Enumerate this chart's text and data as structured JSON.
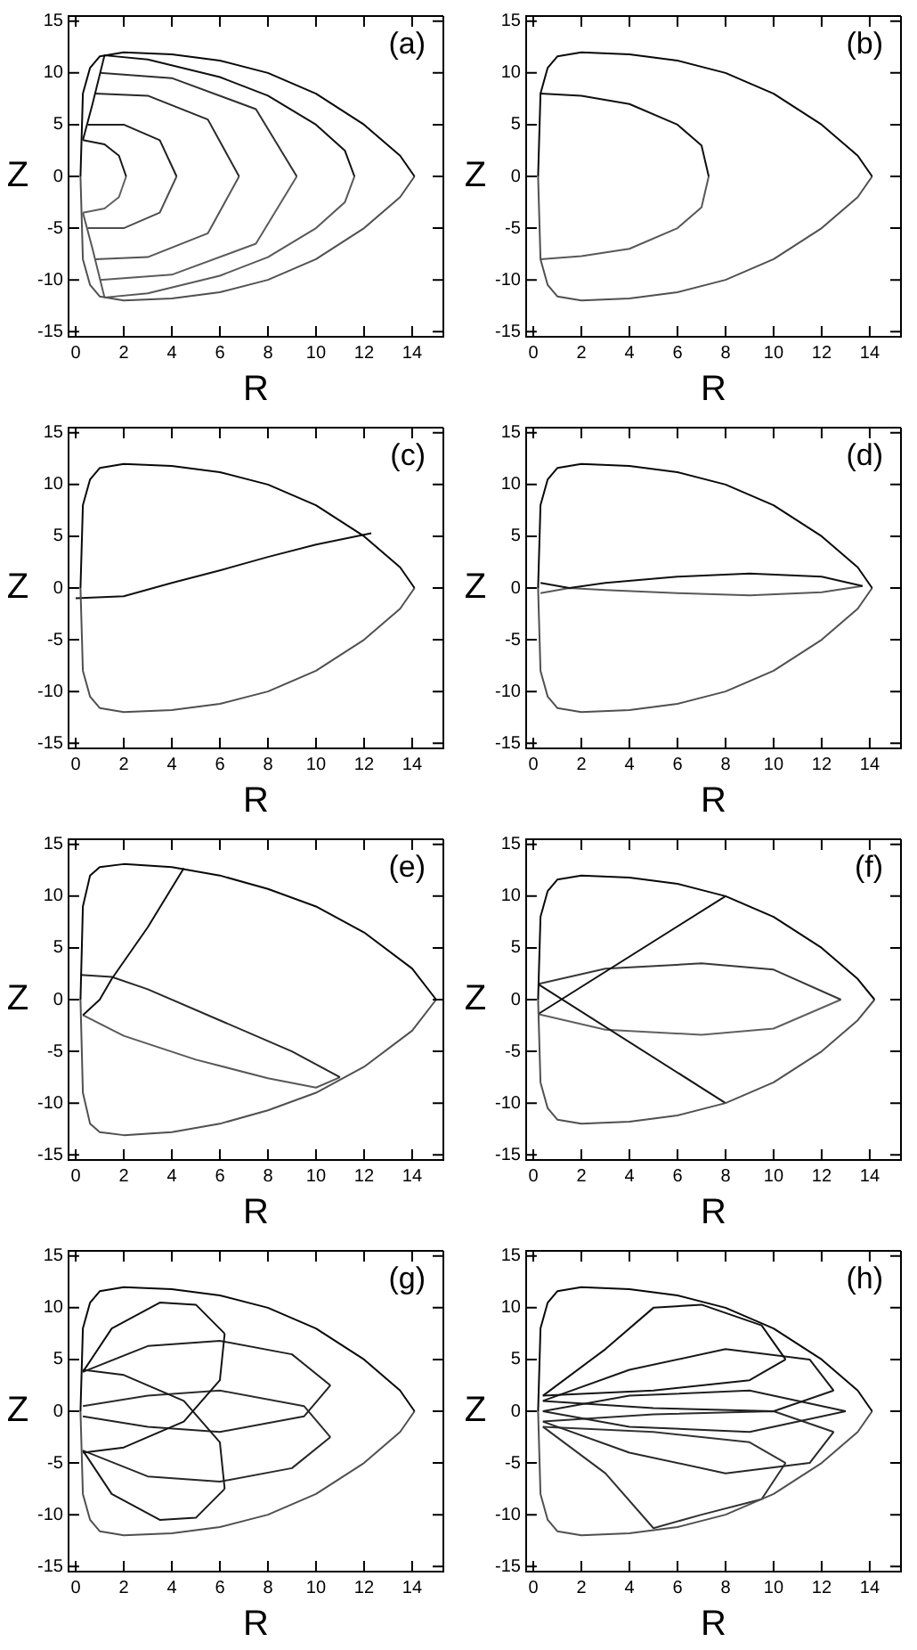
{
  "chart_data": [
    {
      "type": "line",
      "annotations": [
        "(a)"
      ],
      "xlabel": "R",
      "ylabel": "Z",
      "marker": "none",
      "xlim": [
        -0.3,
        15.3
      ],
      "ylim": [
        -15.5,
        15.5
      ],
      "xticks": [
        0,
        2,
        4,
        6,
        8,
        10,
        12,
        14
      ],
      "yticks": [
        -15,
        -10,
        -5,
        0,
        5,
        10,
        15
      ],
      "series": [
        {
          "color": "#080808",
          "x": [
            0.2,
            0.3,
            0.6,
            1,
            2,
            4,
            6,
            8,
            10,
            12,
            13.5,
            14.1
          ],
          "values": [
            0,
            8,
            10.5,
            11.6,
            12,
            11.8,
            11.2,
            10,
            8,
            5,
            2,
            0
          ]
        },
        {
          "color": "#505050",
          "x": [
            0.2,
            0.3,
            0.6,
            1,
            2,
            4,
            6,
            8,
            10,
            12,
            13.5,
            14.1
          ],
          "values": [
            0,
            -8,
            -10.5,
            -11.6,
            -12,
            -11.8,
            -11.2,
            -10,
            -8,
            -5,
            -2,
            0
          ]
        },
        {
          "color": "#101010",
          "x": [
            0.3,
            0.7,
            1.2,
            3,
            6,
            8,
            10,
            11.2,
            11.6
          ],
          "values": [
            3.5,
            7,
            11.7,
            11.3,
            9.6,
            7.8,
            5,
            2.5,
            0
          ]
        },
        {
          "color": "#585858",
          "x": [
            0.3,
            0.7,
            1.2,
            3,
            6,
            8,
            10,
            11.2,
            11.6
          ],
          "values": [
            -3.5,
            -7,
            -11.7,
            -11.3,
            -9.6,
            -7.8,
            -5,
            -2.5,
            0
          ]
        },
        {
          "color": "#181818",
          "x": [
            0.3,
            1.2,
            1.8,
            2.1
          ],
          "values": [
            3.5,
            3.1,
            2,
            0
          ]
        },
        {
          "color": "#606060",
          "x": [
            0.3,
            1.2,
            1.8,
            2.1
          ],
          "values": [
            -3.5,
            -3.1,
            -2,
            0
          ]
        },
        {
          "color": "#202020",
          "x": [
            0.5,
            2,
            3.5,
            4.2
          ],
          "values": [
            5,
            5,
            3.5,
            0
          ]
        },
        {
          "color": "#4c4c4c",
          "x": [
            0.5,
            2,
            3.5,
            4.2
          ],
          "values": [
            -5,
            -5,
            -3.5,
            0
          ]
        },
        {
          "color": "#282828",
          "x": [
            0.8,
            3,
            5.5,
            6.8
          ],
          "values": [
            8,
            7.8,
            5.5,
            0
          ]
        },
        {
          "color": "#545454",
          "x": [
            0.8,
            3,
            5.5,
            6.8
          ],
          "values": [
            -8,
            -7.8,
            -5.5,
            0
          ]
        },
        {
          "color": "#303030",
          "x": [
            1,
            4,
            7.5,
            9.2
          ],
          "values": [
            10,
            9.5,
            6.5,
            0
          ]
        },
        {
          "color": "#5c5c5c",
          "x": [
            1,
            4,
            7.5,
            9.2
          ],
          "values": [
            -10,
            -9.5,
            -6.5,
            0
          ]
        }
      ]
    },
    {
      "type": "line",
      "annotations": [
        "(b)"
      ],
      "xlabel": "R",
      "ylabel": "Z",
      "marker": "none",
      "xlim": [
        -0.3,
        15.3
      ],
      "ylim": [
        -15.5,
        15.5
      ],
      "xticks": [
        0,
        2,
        4,
        6,
        8,
        10,
        12,
        14
      ],
      "yticks": [
        -15,
        -10,
        -5,
        0,
        5,
        10,
        15
      ],
      "series": [
        {
          "color": "#080808",
          "x": [
            0.2,
            0.3,
            0.6,
            1,
            2,
            4,
            6,
            8,
            10,
            12,
            13.5,
            14.1
          ],
          "values": [
            0,
            8,
            10.5,
            11.6,
            12,
            11.8,
            11.2,
            10,
            8,
            5,
            2,
            0
          ]
        },
        {
          "color": "#505050",
          "x": [
            0.2,
            0.3,
            0.6,
            1,
            2,
            4,
            6,
            8,
            10,
            12,
            13.5,
            14.1
          ],
          "values": [
            0,
            -8,
            -10.5,
            -11.6,
            -12,
            -11.8,
            -11.2,
            -10,
            -8,
            -5,
            -2,
            0
          ]
        },
        {
          "color": "#101010",
          "x": [
            0.3,
            2,
            4,
            6,
            7,
            7.3
          ],
          "values": [
            8,
            7.8,
            7,
            5,
            3,
            0
          ]
        },
        {
          "color": "#585858",
          "x": [
            0.3,
            2,
            4,
            6,
            7,
            7.3
          ],
          "values": [
            -8,
            -7.7,
            -7,
            -5,
            -3,
            0
          ]
        }
      ]
    },
    {
      "type": "line",
      "annotations": [
        "(c)"
      ],
      "xlabel": "R",
      "ylabel": "Z",
      "marker": "none",
      "xlim": [
        -0.3,
        15.3
      ],
      "ylim": [
        -15.5,
        15.5
      ],
      "xticks": [
        0,
        2,
        4,
        6,
        8,
        10,
        12,
        14
      ],
      "yticks": [
        -15,
        -10,
        -5,
        0,
        5,
        10,
        15
      ],
      "series": [
        {
          "color": "#080808",
          "x": [
            0.2,
            0.3,
            0.6,
            1,
            2,
            4,
            6,
            8,
            10,
            12,
            13.5,
            14.1
          ],
          "values": [
            0,
            8,
            10.5,
            11.6,
            12,
            11.8,
            11.2,
            10,
            8,
            5,
            2,
            0
          ]
        },
        {
          "color": "#505050",
          "x": [
            0.2,
            0.3,
            0.6,
            1,
            2,
            4,
            6,
            8,
            10,
            12,
            13.5,
            14.1
          ],
          "values": [
            0,
            -8,
            -10.5,
            -11.6,
            -12,
            -11.8,
            -11.2,
            -10,
            -8,
            -5,
            -2,
            0
          ]
        },
        {
          "color": "#101010",
          "x": [
            0,
            2,
            4,
            6,
            8,
            10,
            12.3
          ],
          "values": [
            -1,
            -0.8,
            0.5,
            1.7,
            3,
            4.2,
            5.3
          ]
        }
      ]
    },
    {
      "type": "line",
      "annotations": [
        "(d)"
      ],
      "xlabel": "R",
      "ylabel": "Z",
      "marker": "none",
      "xlim": [
        -0.3,
        15.3
      ],
      "ylim": [
        -15.5,
        15.5
      ],
      "xticks": [
        0,
        2,
        4,
        6,
        8,
        10,
        12,
        14
      ],
      "yticks": [
        -15,
        -10,
        -5,
        0,
        5,
        10,
        15
      ],
      "series": [
        {
          "color": "#080808",
          "x": [
            0.2,
            0.3,
            0.6,
            1,
            2,
            4,
            6,
            8,
            10,
            12,
            13.5,
            14.1
          ],
          "values": [
            0,
            8,
            10.5,
            11.6,
            12,
            11.8,
            11.2,
            10,
            8,
            5,
            2,
            0
          ]
        },
        {
          "color": "#505050",
          "x": [
            0.2,
            0.3,
            0.6,
            1,
            2,
            4,
            6,
            8,
            10,
            12,
            13.5,
            14.1
          ],
          "values": [
            0,
            -8,
            -10.5,
            -11.6,
            -12,
            -11.8,
            -11.2,
            -10,
            -8,
            -5,
            -2,
            0
          ]
        },
        {
          "color": "#101010",
          "x": [
            0.3,
            1.5,
            3,
            6,
            9,
            12,
            13.7
          ],
          "values": [
            0.5,
            0,
            0.5,
            1.1,
            1.4,
            1.1,
            0.2
          ]
        },
        {
          "color": "#585858",
          "x": [
            0.3,
            1.5,
            3,
            6,
            9,
            12,
            13.7
          ],
          "values": [
            -0.5,
            0,
            -0.2,
            -0.5,
            -0.7,
            -0.4,
            0.2
          ]
        }
      ]
    },
    {
      "type": "line",
      "annotations": [
        "(e)"
      ],
      "xlabel": "R",
      "ylabel": "Z",
      "marker": "none",
      "xlim": [
        -0.3,
        15.3
      ],
      "ylim": [
        -15.5,
        15.5
      ],
      "xticks": [
        0,
        2,
        4,
        6,
        8,
        10,
        12,
        14
      ],
      "yticks": [
        -15,
        -10,
        -5,
        0,
        5,
        10,
        15
      ],
      "series": [
        {
          "color": "#080808",
          "x": [
            0.2,
            0.3,
            0.6,
            1,
            2,
            4,
            6,
            8,
            10,
            12,
            14,
            15
          ],
          "values": [
            0,
            9,
            12,
            12.8,
            13.1,
            12.8,
            12,
            10.7,
            9,
            6.5,
            3,
            0
          ]
        },
        {
          "color": "#505050",
          "x": [
            0.2,
            0.3,
            0.6,
            1,
            2,
            4,
            6,
            8,
            10,
            12,
            14,
            15
          ],
          "values": [
            0,
            -9,
            -12,
            -12.8,
            -13.1,
            -12.8,
            -12,
            -10.7,
            -9,
            -6.5,
            -3,
            0
          ]
        },
        {
          "color": "#101010",
          "x": [
            0.3,
            1,
            1.5,
            3,
            4.5
          ],
          "values": [
            -1.5,
            0,
            2,
            7,
            12.7
          ]
        },
        {
          "color": "#282828",
          "x": [
            0.2,
            1.5,
            3,
            6,
            9,
            11
          ],
          "values": [
            2.4,
            2.2,
            1,
            -2,
            -5,
            -7.5
          ]
        },
        {
          "color": "#585858",
          "x": [
            0.3,
            2,
            5,
            8,
            10,
            11
          ],
          "values": [
            -1.5,
            -3.5,
            -5.8,
            -7.6,
            -8.5,
            -7.5
          ]
        }
      ]
    },
    {
      "type": "line",
      "annotations": [
        "(f)"
      ],
      "xlabel": "R",
      "ylabel": "Z",
      "marker": "none",
      "xlim": [
        -0.3,
        15.3
      ],
      "ylim": [
        -15.5,
        15.5
      ],
      "xticks": [
        0,
        2,
        4,
        6,
        8,
        10,
        12,
        14
      ],
      "yticks": [
        -15,
        -10,
        -5,
        0,
        5,
        10,
        15
      ],
      "series": [
        {
          "color": "#080808",
          "x": [
            0.2,
            0.3,
            0.6,
            1,
            2,
            4,
            6,
            8,
            10,
            12,
            13.5,
            14.2
          ],
          "values": [
            0,
            8,
            10.5,
            11.6,
            12,
            11.8,
            11.2,
            10,
            8,
            5,
            2,
            0
          ]
        },
        {
          "color": "#505050",
          "x": [
            0.2,
            0.3,
            0.6,
            1,
            2,
            4,
            6,
            8,
            10,
            12,
            13.5,
            14.2
          ],
          "values": [
            0,
            -8,
            -10.5,
            -11.6,
            -12,
            -11.8,
            -11.2,
            -10,
            -8,
            -5,
            -2,
            0
          ]
        },
        {
          "color": "#101010",
          "x": [
            0.2,
            8
          ],
          "values": [
            -1.4,
            10
          ]
        },
        {
          "color": "#141414",
          "x": [
            0.2,
            8
          ],
          "values": [
            1.5,
            -10
          ]
        },
        {
          "color": "#383838",
          "x": [
            0.2,
            3,
            7,
            10,
            12.8
          ],
          "values": [
            1.5,
            3,
            3.5,
            2.9,
            0
          ]
        },
        {
          "color": "#606060",
          "x": [
            0.2,
            3,
            7,
            10,
            12.8
          ],
          "values": [
            -1.4,
            -2.9,
            -3.4,
            -2.8,
            0
          ]
        }
      ]
    },
    {
      "type": "line",
      "annotations": [
        "(g)"
      ],
      "xlabel": "R",
      "ylabel": "Z",
      "marker": "none",
      "xlim": [
        -0.3,
        15.3
      ],
      "ylim": [
        -15.5,
        15.5
      ],
      "xticks": [
        0,
        2,
        4,
        6,
        8,
        10,
        12,
        14
      ],
      "yticks": [
        -15,
        -10,
        -5,
        0,
        5,
        10,
        15
      ],
      "series": [
        {
          "color": "#080808",
          "x": [
            0.2,
            0.3,
            0.6,
            1,
            2,
            4,
            6,
            8,
            10,
            12,
            13.5,
            14.1
          ],
          "values": [
            0,
            8,
            10.5,
            11.6,
            12,
            11.8,
            11.2,
            10,
            8,
            5,
            2,
            0
          ]
        },
        {
          "color": "#505050",
          "x": [
            0.2,
            0.3,
            0.6,
            1,
            2,
            4,
            6,
            8,
            10,
            12,
            13.5,
            14.1
          ],
          "values": [
            0,
            -8,
            -10.5,
            -11.6,
            -12,
            -11.8,
            -11.2,
            -10,
            -8,
            -5,
            -2,
            0
          ]
        },
        {
          "color": "#101010",
          "x": [
            0.3,
            1.5,
            3.5,
            5,
            6.2
          ],
          "values": [
            3.8,
            8,
            10.5,
            10.3,
            7.5
          ]
        },
        {
          "color": "#141414",
          "x": [
            0.3,
            2,
            4.5,
            6,
            6.2
          ],
          "values": [
            -4,
            -3.5,
            -1,
            3,
            7.5
          ]
        },
        {
          "color": "#181818",
          "x": [
            0.3,
            1.5,
            3.5,
            5,
            6.2
          ],
          "values": [
            -3.8,
            -8,
            -10.5,
            -10.3,
            -7.5
          ]
        },
        {
          "color": "#1c1c1c",
          "x": [
            0.3,
            2,
            4.5,
            6,
            6.2
          ],
          "values": [
            4,
            3.5,
            1,
            -3,
            -7.5
          ]
        },
        {
          "color": "#202020",
          "x": [
            0.3,
            3,
            6,
            9,
            10.6
          ],
          "values": [
            3.8,
            6.3,
            6.8,
            5.5,
            2.5
          ]
        },
        {
          "color": "#242424",
          "x": [
            0.3,
            3,
            6,
            9.5,
            10.6
          ],
          "values": [
            -0.5,
            -1.5,
            -2,
            -0.5,
            2.5
          ]
        },
        {
          "color": "#282828",
          "x": [
            0.3,
            3,
            6,
            9,
            10.6
          ],
          "values": [
            -3.8,
            -6.3,
            -6.8,
            -5.5,
            -2.5
          ]
        },
        {
          "color": "#2c2c2c",
          "x": [
            0.3,
            3,
            6,
            9.5,
            10.6
          ],
          "values": [
            0.5,
            1.5,
            2,
            0.5,
            -2.5
          ]
        }
      ]
    },
    {
      "type": "line",
      "annotations": [
        "(h)"
      ],
      "xlabel": "R",
      "ylabel": "Z",
      "marker": "none",
      "xlim": [
        -0.3,
        15.3
      ],
      "ylim": [
        -15.5,
        15.5
      ],
      "xticks": [
        0,
        2,
        4,
        6,
        8,
        10,
        12,
        14
      ],
      "yticks": [
        -15,
        -10,
        -5,
        0,
        5,
        10,
        15
      ],
      "series": [
        {
          "color": "#080808",
          "x": [
            0.2,
            0.3,
            0.6,
            1,
            2,
            4,
            6,
            8,
            10,
            12,
            13.5,
            14.1
          ],
          "values": [
            0,
            8,
            10.5,
            11.6,
            12,
            11.8,
            11.2,
            10,
            8,
            5,
            2,
            0
          ]
        },
        {
          "color": "#505050",
          "x": [
            0.2,
            0.3,
            0.6,
            1,
            2,
            4,
            6,
            8,
            10,
            12,
            13.5,
            14.1
          ],
          "values": [
            0,
            -8,
            -10.5,
            -11.6,
            -12,
            -11.8,
            -11.2,
            -10,
            -8,
            -5,
            -2,
            0
          ]
        },
        {
          "color": "#101010",
          "x": [
            0.4,
            3,
            5,
            7,
            9.5,
            10.5
          ],
          "values": [
            1.5,
            6,
            10,
            10.3,
            8.3,
            5
          ]
        },
        {
          "color": "#141414",
          "x": [
            0.4,
            5,
            9,
            10.5
          ],
          "values": [
            1.5,
            2,
            3,
            5
          ]
        },
        {
          "color": "#181818",
          "x": [
            0.4,
            4,
            8,
            11.5,
            12.5
          ],
          "values": [
            1,
            4,
            6,
            5,
            2
          ]
        },
        {
          "color": "#1c1c1c",
          "x": [
            0.4,
            5,
            10,
            12.5
          ],
          "values": [
            1,
            0.3,
            0,
            2
          ]
        },
        {
          "color": "#202020",
          "x": [
            0.4,
            4,
            9,
            13
          ],
          "values": [
            0,
            1.5,
            2,
            0
          ]
        },
        {
          "color": "#242424",
          "x": [
            0.4,
            4,
            9,
            13
          ],
          "values": [
            0,
            -1.5,
            -2,
            0
          ]
        },
        {
          "color": "#282828",
          "x": [
            0.4,
            4,
            8,
            11.5,
            12.5
          ],
          "values": [
            -1,
            -4,
            -6,
            -5,
            -2
          ]
        },
        {
          "color": "#2c2c2c",
          "x": [
            0.4,
            5,
            10,
            12.5
          ],
          "values": [
            -1,
            -0.3,
            0,
            -2
          ]
        },
        {
          "color": "#303030",
          "x": [
            0.4,
            3,
            5,
            7,
            9.5,
            10.5
          ],
          "values": [
            -1.5,
            -6,
            -11.3,
            -10,
            -8.5,
            -5
          ]
        },
        {
          "color": "#343434",
          "x": [
            0.4,
            5,
            9,
            10.5
          ],
          "values": [
            -1.5,
            -2,
            -3,
            -5
          ]
        }
      ]
    }
  ]
}
